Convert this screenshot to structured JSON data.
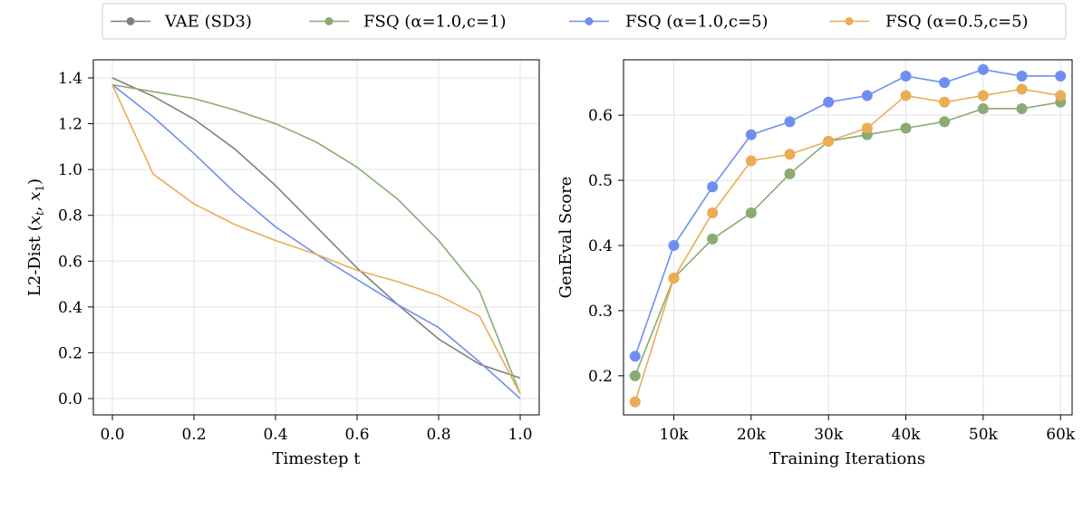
{
  "colors": {
    "vae": "#808080",
    "fsq_a1_c1": "#8aab74",
    "fsq_a1_c5": "#6f8ff0",
    "fsq_a05_c5": "#eaac54"
  },
  "legend": [
    {
      "key": "vae",
      "label": "VAE (SD3)"
    },
    {
      "key": "fsq_a1_c1",
      "label": "FSQ (α=1.0,c=1)"
    },
    {
      "key": "fsq_a1_c5",
      "label": "FSQ (α=1.0,c=5)"
    },
    {
      "key": "fsq_a05_c5",
      "label": "FSQ (α=0.5,c=5)"
    }
  ],
  "chart_data": [
    {
      "type": "line",
      "xlabel": "Timestep t",
      "ylabel": "L2-Dist (xt, x1)",
      "ylabel_parts": {
        "pre": "L2-Dist (",
        "x": "x",
        "sub_t": "t",
        "sep": ", ",
        "sub_1": "1",
        "post": ")"
      },
      "xlim": [
        0.0,
        1.0
      ],
      "ylim": [
        0.0,
        1.4
      ],
      "xticks": [
        "0.0",
        "0.2",
        "0.4",
        "0.6",
        "0.8",
        "1.0"
      ],
      "yticks": [
        "0.0",
        "0.2",
        "0.4",
        "0.6",
        "0.8",
        "1.0",
        "1.2",
        "1.4"
      ],
      "x": [
        0.0,
        0.1,
        0.2,
        0.3,
        0.4,
        0.5,
        0.6,
        0.7,
        0.8,
        0.9,
        1.0
      ],
      "series": [
        {
          "key": "vae",
          "name": "VAE (SD3)",
          "values": [
            1.4,
            1.32,
            1.22,
            1.09,
            0.93,
            0.75,
            0.57,
            0.41,
            0.26,
            0.15,
            0.09
          ]
        },
        {
          "key": "fsq_a1_c1",
          "name": "FSQ (α=1.0,c=1)",
          "values": [
            1.37,
            1.34,
            1.31,
            1.26,
            1.2,
            1.12,
            1.01,
            0.87,
            0.69,
            0.47,
            0.02
          ]
        },
        {
          "key": "fsq_a1_c5",
          "name": "FSQ (α=1.0,c=5)",
          "values": [
            1.37,
            1.23,
            1.07,
            0.9,
            0.75,
            0.63,
            0.52,
            0.41,
            0.31,
            0.16,
            0.0
          ]
        },
        {
          "key": "fsq_a05_c5",
          "name": "FSQ (α=0.5,c=5)",
          "values": [
            1.37,
            0.98,
            0.85,
            0.76,
            0.69,
            0.63,
            0.56,
            0.51,
            0.45,
            0.36,
            0.02
          ]
        }
      ]
    },
    {
      "type": "line",
      "markers": true,
      "xlabel": "Training Iterations",
      "ylabel": "GenEval Score",
      "xlim": [
        3500,
        61500
      ],
      "ylim": [
        0.14,
        0.685
      ],
      "xticks": [
        "10k",
        "20k",
        "30k",
        "40k",
        "50k",
        "60k"
      ],
      "xtick_values": [
        10000,
        20000,
        30000,
        40000,
        50000,
        60000
      ],
      "yticks": [
        "0.2",
        "0.3",
        "0.4",
        "0.5",
        "0.6"
      ],
      "ytick_values": [
        0.2,
        0.3,
        0.4,
        0.5,
        0.6
      ],
      "x": [
        5000,
        10000,
        15000,
        20000,
        25000,
        30000,
        35000,
        40000,
        45000,
        50000,
        55000,
        60000
      ],
      "series": [
        {
          "key": "fsq_a1_c1",
          "name": "FSQ (α=1.0,c=1)",
          "values": [
            0.2,
            0.35,
            0.41,
            0.45,
            0.51,
            0.56,
            0.57,
            0.58,
            0.59,
            0.61,
            0.61,
            0.62
          ]
        },
        {
          "key": "fsq_a1_c5",
          "name": "FSQ (α=1.0,c=5)",
          "values": [
            0.23,
            0.4,
            0.49,
            0.57,
            0.59,
            0.62,
            0.63,
            0.66,
            0.65,
            0.67,
            0.66,
            0.66
          ]
        },
        {
          "key": "fsq_a05_c5",
          "name": "FSQ (α=0.5,c=5)",
          "values": [
            0.16,
            0.35,
            0.45,
            0.53,
            0.54,
            0.56,
            0.58,
            0.63,
            0.62,
            0.63,
            0.64,
            0.63
          ]
        }
      ]
    }
  ]
}
